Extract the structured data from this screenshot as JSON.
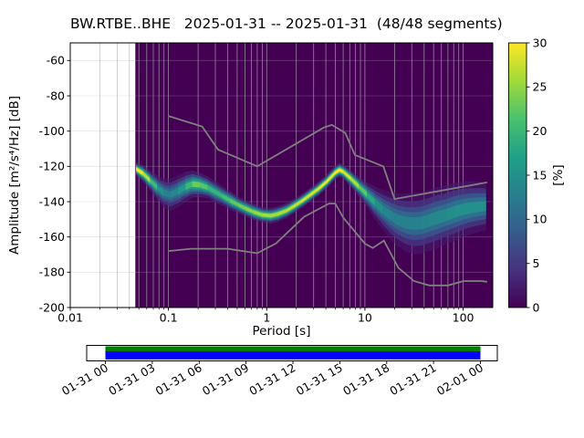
{
  "figure": {
    "title": "BW.RTBE..BHE   2025-01-31 -- 2025-01-31  (48/48 segments)"
  },
  "axes": {
    "xlabel": "Period [s]",
    "ylabel": "Amplitude [m²/s⁴/Hz] [dB]",
    "x_scale": "log",
    "x_range": [
      0.01,
      200
    ],
    "y_range": [
      -200,
      -50
    ],
    "x_tick_values": [
      0.01,
      0.1,
      1,
      10,
      100
    ],
    "x_tick_labels": [
      "0.01",
      "0.1",
      "1",
      "10",
      "100"
    ],
    "y_tick_values": [
      -60,
      -80,
      -100,
      -120,
      -140,
      -160,
      -180,
      -200
    ],
    "y_tick_labels": [
      "-60",
      "-80",
      "-100",
      "-120",
      "-140",
      "-160",
      "-180",
      "-200"
    ]
  },
  "grid": {
    "color": "#b0b0b0"
  },
  "colorbar": {
    "label": "[%]",
    "range": [
      0,
      30
    ],
    "tick_values": [
      0,
      5,
      10,
      15,
      20,
      25,
      30
    ],
    "tick_labels": [
      "0",
      "5",
      "10",
      "15",
      "20",
      "25",
      "30"
    ],
    "colormap": "viridis",
    "stops": [
      "#440154",
      "#46327e",
      "#365c8d",
      "#277f8e",
      "#1fa187",
      "#4ac16d",
      "#a0da39",
      "#fde725"
    ]
  },
  "chart_data": {
    "type": "heatmap",
    "title": "BW.RTBE..BHE 2025-01-31 -- 2025-01-31 (48/48 segments)",
    "xlabel": "Period [s]",
    "ylabel": "Amplitude [m²/s⁴/Hz] [dB]",
    "zlabel": "[%]",
    "zlim": [
      0,
      30
    ],
    "xlim": [
      0.01,
      200
    ],
    "ylim": [
      -200,
      -50
    ],
    "bg": "#440154",
    "data_period_min": 0.046,
    "psd_distribution": {
      "periods_s": [
        0.047,
        0.055,
        0.065,
        0.077,
        0.09,
        0.105,
        0.125,
        0.15,
        0.175,
        0.21,
        0.25,
        0.3,
        0.36,
        0.43,
        0.52,
        0.62,
        0.75,
        0.9,
        1.1,
        1.3,
        1.6,
        1.9,
        2.3,
        2.8,
        3.4,
        4.1,
        5.0,
        5.5,
        6.0,
        7.2,
        8.7,
        10.5,
        12.6,
        15.2,
        18.3,
        22,
        26.5,
        32,
        38,
        46,
        55,
        67,
        80,
        97,
        117,
        140,
        170
      ],
      "mode_db": [
        -121.5,
        -124,
        -128,
        -132,
        -135,
        -136,
        -134,
        -131.5,
        -130,
        -130.5,
        -132,
        -134.5,
        -137,
        -139.5,
        -142,
        -144,
        -146,
        -147.5,
        -148,
        -147,
        -145,
        -142.5,
        -139.5,
        -136,
        -132.5,
        -128.5,
        -123.5,
        -122,
        -123,
        -127,
        -131.5,
        -136,
        -140.5,
        -144.5,
        -148,
        -150.5,
        -152,
        -152.5,
        -152,
        -150.5,
        -149,
        -147.5,
        -146,
        -144.5,
        -143.5,
        -143,
        -142.5
      ],
      "half_width_db": [
        2.5,
        3,
        3.5,
        4.5,
        5.5,
        6,
        6,
        5.5,
        5,
        4.5,
        4,
        4,
        3.5,
        3.5,
        3,
        3,
        3,
        2.8,
        2.8,
        2.8,
        2.6,
        2.6,
        2.5,
        2.5,
        2.5,
        2.5,
        2.5,
        2.5,
        2.5,
        3,
        3.5,
        4.5,
        6,
        7.5,
        9,
        10,
        11,
        11.5,
        11.5,
        11.5,
        11.5,
        11,
        11,
        10.5,
        10,
        9.5,
        9
      ],
      "peak_percent": [
        30,
        30,
        24,
        17,
        13,
        13,
        14,
        18,
        22,
        24,
        20,
        19,
        20,
        22,
        23,
        24,
        25,
        26,
        26,
        26,
        27,
        27,
        28,
        28,
        29,
        29,
        30,
        30,
        29,
        28,
        25,
        20,
        16,
        14,
        13,
        13,
        13,
        13,
        13,
        14,
        14,
        14,
        15,
        15,
        15,
        15,
        15
      ]
    },
    "noise_models": {
      "color": "#808080",
      "nhnm": {
        "periods_s": [
          0.1,
          0.22,
          0.32,
          0.8,
          3.8,
          4.6,
          6.3,
          7.9,
          15.4,
          20.0,
          175.0
        ],
        "db": [
          -91.5,
          -97.4,
          -110.5,
          -120.0,
          -98.0,
          -96.5,
          -101.0,
          -113.5,
          -120.0,
          -138.5,
          -129.1
        ]
      },
      "nlnm": {
        "periods_s": [
          0.1,
          0.17,
          0.4,
          0.8,
          1.24,
          2.4,
          4.3,
          5.0,
          6.0,
          10.0,
          12.0,
          15.6,
          21.9,
          31.6,
          45.0,
          70.0,
          101.0,
          154.0,
          175.0
        ],
        "db": [
          -168.0,
          -166.7,
          -166.7,
          -169.2,
          -163.7,
          -148.6,
          -141.1,
          -141.1,
          -149.0,
          -163.8,
          -166.2,
          -162.1,
          -177.5,
          -185.0,
          -187.5,
          -187.5,
          -185.0,
          -185.0,
          -185.4
        ]
      }
    }
  },
  "timeline": {
    "tick_labels": [
      "01-31 00",
      "01-31 03",
      "01-31 06",
      "01-31 09",
      "01-31 12",
      "01-31 15",
      "01-31 18",
      "01-31 21",
      "02-01 00"
    ],
    "top_stripe_color": "#008000",
    "bottom_stripe_color": "#0000ff"
  }
}
